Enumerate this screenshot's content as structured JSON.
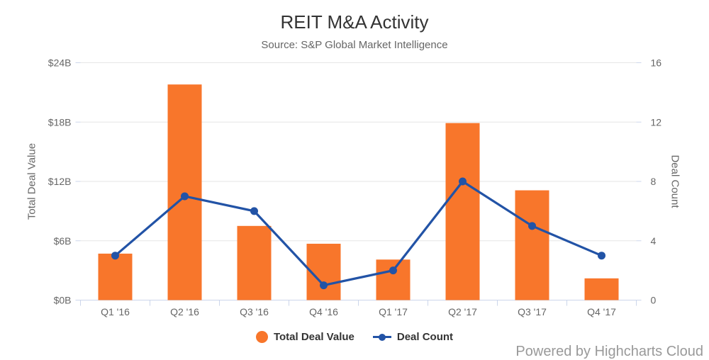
{
  "chart": {
    "title": "REIT M&A Activity",
    "subtitle": "Source: S&P Global Market Intelligence",
    "credits": "Powered by Highcharts Cloud",
    "colors": {
      "bar": "#f8762b",
      "line": "#2253a6",
      "gridline": "#e6e6e6",
      "axis_line": "#ccd6eb",
      "title_text": "#333333",
      "muted_text": "#666666",
      "credits_text": "#999999"
    }
  },
  "chart_data": {
    "type": "bar",
    "subtype": "column-and-line combo, dual y-axes",
    "title": "REIT M&A Activity",
    "subtitle": "Source: S&P Global Market Intelligence",
    "categories": [
      "Q1 '16",
      "Q2 '16",
      "Q3 '16",
      "Q4 '16",
      "Q1 '17",
      "Q2 '17",
      "Q3 '17",
      "Q4 '17"
    ],
    "series": [
      {
        "name": "Total Deal Value",
        "type": "bar",
        "axis": "left",
        "color": "#f8762b",
        "values": [
          4.7,
          21.8,
          7.5,
          5.7,
          4.1,
          17.9,
          11.1,
          2.2
        ],
        "unit": "$B"
      },
      {
        "name": "Deal Count",
        "type": "line",
        "axis": "right",
        "color": "#2253a6",
        "values": [
          3,
          7,
          6,
          1,
          2,
          8,
          5,
          3
        ],
        "unit": "deals"
      }
    ],
    "left_axis": {
      "title": "Total Deal Value",
      "min": 0,
      "max": 24,
      "tick_interval": 6,
      "tick_labels": [
        "$0B",
        "$6B",
        "$12B",
        "$18B",
        "$24B"
      ]
    },
    "right_axis": {
      "title": "Deal Count",
      "min": 0,
      "max": 16,
      "tick_interval": 4,
      "tick_labels": [
        "0",
        "4",
        "8",
        "12",
        "16"
      ]
    },
    "grid": true,
    "legend_position": "bottom-center"
  },
  "legend": {
    "items": [
      {
        "label": "Total Deal Value",
        "marker": "circle-icon"
      },
      {
        "label": "Deal Count",
        "marker": "line-dot-icon"
      }
    ]
  }
}
